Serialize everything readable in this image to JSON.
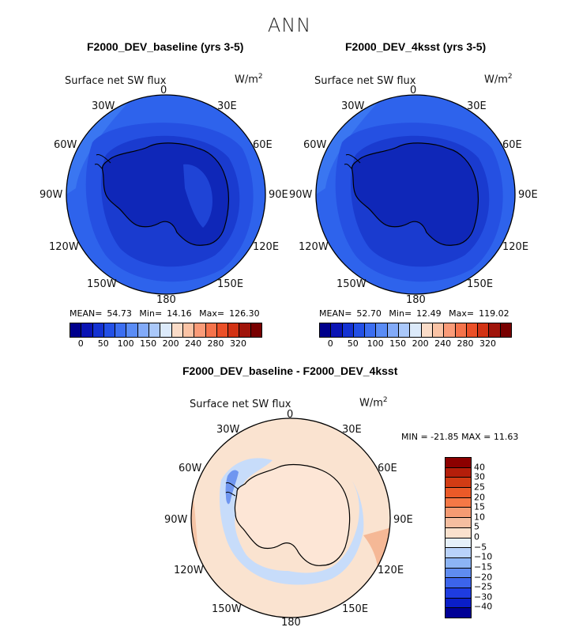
{
  "figure": {
    "title": "ANN"
  },
  "panels": [
    {
      "title": "F2000_DEV_baseline (yrs 3-5)",
      "variable": "Surface net SW flux",
      "units_base": "W/m",
      "units_exp": "2",
      "stats": {
        "mean_label": "MEAN=",
        "mean": "54.73",
        "min_label": "Min=",
        "min": "14.16",
        "max_label": "Max=",
        "max": "126.30"
      }
    },
    {
      "title": "F2000_DEV_4ksst (yrs 3-5)",
      "variable": "Surface net SW flux",
      "units_base": "W/m",
      "units_exp": "2",
      "stats": {
        "mean_label": "MEAN=",
        "mean": "52.70",
        "min_label": "Min=",
        "min": "12.49",
        "max_label": "Max=",
        "max": "119.02"
      }
    },
    {
      "title": "F2000_DEV_baseline - F2000_DEV_4ksst",
      "variable": "Surface net SW flux",
      "units_base": "W/m",
      "units_exp": "2",
      "minmax_text": "MIN = -21.85 MAX =  11.63"
    }
  ],
  "lon_labels": [
    "0",
    "30E",
    "60E",
    "90E",
    "120E",
    "150E",
    "180",
    "150W",
    "120W",
    "90W",
    "60W",
    "30W"
  ],
  "chart_data": [
    {
      "type": "heatmap",
      "title": "F2000_DEV_baseline (yrs 3-5)",
      "projection": "south polar stereographic",
      "variable": "Surface net SW flux",
      "units": "W/m2",
      "mean": 54.73,
      "min": 14.16,
      "max": 126.3,
      "colorbar": {
        "tick_labels": [
          "0",
          "50",
          "100",
          "150",
          "200",
          "240",
          "280",
          "320"
        ],
        "colors": [
          "#00008c",
          "#0a14b4",
          "#1432d2",
          "#2350e6",
          "#3c6ef0",
          "#5a8cf5",
          "#82aaf8",
          "#aac8fa",
          "#dceafa",
          "#fadcc8",
          "#fac3a5",
          "#fa9b78",
          "#f5734b",
          "#eb5028",
          "#d23214",
          "#a0140a",
          "#780000"
        ]
      }
    },
    {
      "type": "heatmap",
      "title": "F2000_DEV_4ksst (yrs 3-5)",
      "projection": "south polar stereographic",
      "variable": "Surface net SW flux",
      "units": "W/m2",
      "mean": 52.7,
      "min": 12.49,
      "max": 119.02,
      "colorbar": {
        "tick_labels": [
          "0",
          "50",
          "100",
          "150",
          "200",
          "240",
          "280",
          "320"
        ],
        "colors": [
          "#00008c",
          "#0a14b4",
          "#1432d2",
          "#2350e6",
          "#3c6ef0",
          "#5a8cf5",
          "#82aaf8",
          "#aac8fa",
          "#dceafa",
          "#fadcc8",
          "#fac3a5",
          "#fa9b78",
          "#f5734b",
          "#eb5028",
          "#d23214",
          "#a0140a",
          "#780000"
        ]
      }
    },
    {
      "type": "heatmap",
      "title": "F2000_DEV_baseline - F2000_DEV_4ksst",
      "projection": "south polar stereographic",
      "variable": "Surface net SW flux",
      "units": "W/m2",
      "min": -21.85,
      "max": 11.63,
      "colorbar": {
        "tick_labels": [
          "40",
          "30",
          "25",
          "20",
          "15",
          "10",
          "5",
          "0",
          "−5",
          "−10",
          "−15",
          "−20",
          "−25",
          "−30",
          "−40"
        ],
        "colors": [
          "#8c0000",
          "#b41e0a",
          "#d23c14",
          "#eb5a28",
          "#f57846",
          "#f59b73",
          "#f5bea0",
          "#fae1cd",
          "#e6f0fa",
          "#b9d2fa",
          "#8cb4f5",
          "#5f8cf0",
          "#3c64eb",
          "#1e3ce1",
          "#0a1ec8",
          "#000096"
        ]
      }
    }
  ]
}
